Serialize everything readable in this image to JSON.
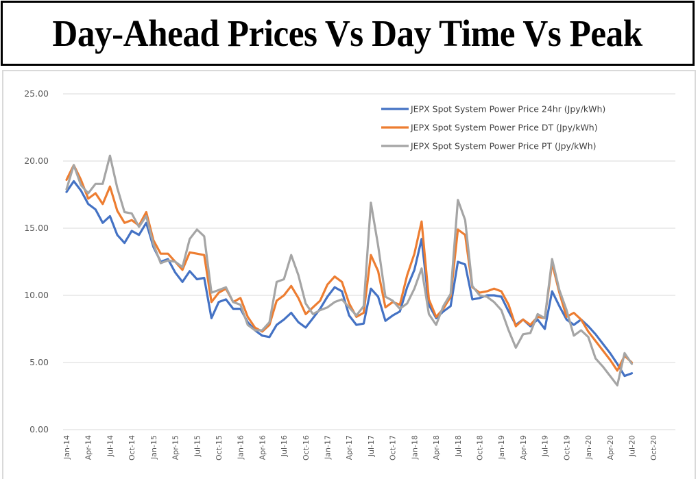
{
  "chart_data": {
    "type": "line",
    "title": "Day-Ahead Prices Vs Day Time Vs Peak",
    "xlabel": "",
    "ylabel": "",
    "ylim": [
      0,
      25
    ],
    "yticks": [
      "0.00",
      "5.00",
      "10.00",
      "15.00",
      "20.00",
      "25.00"
    ],
    "ytick_values": [
      0,
      5,
      10,
      15,
      20,
      25
    ],
    "grid": true,
    "legend_position": "top-right",
    "x_start": "Jan-14",
    "x_tick_labels": [
      "Jan-14",
      "Apr-14",
      "Jul-14",
      "Oct-14",
      "Jan-15",
      "Apr-15",
      "Jul-15",
      "Oct-15",
      "Jan-16",
      "Apr-16",
      "Jul-16",
      "Oct-16",
      "Jan-17",
      "Apr-17",
      "Jul-17",
      "Oct-17",
      "Jan-18",
      "Apr-18",
      "Jul-18",
      "Oct-18",
      "Jan-19",
      "Apr-19",
      "Jul-19",
      "Oct-19",
      "Jan-20",
      "Apr-20",
      "Jul-20",
      "Oct-20"
    ],
    "x_axis_months": 82,
    "series": [
      {
        "name": "JEPX Spot System Power Price 24hr (Jpy/kWh)",
        "color": "#4472C4",
        "values": [
          17.7,
          18.5,
          17.8,
          16.8,
          16.4,
          15.4,
          15.9,
          14.5,
          13.9,
          14.8,
          14.5,
          15.4,
          13.6,
          12.5,
          12.7,
          11.7,
          11.0,
          11.8,
          11.2,
          11.3,
          8.3,
          9.5,
          9.7,
          9.0,
          9.0,
          8.0,
          7.4,
          7.0,
          6.9,
          7.8,
          8.2,
          8.7,
          8.0,
          7.6,
          8.3,
          9.0,
          9.9,
          10.6,
          10.3,
          8.5,
          7.8,
          7.9,
          10.5,
          9.9,
          8.1,
          8.5,
          8.8,
          10.6,
          11.9,
          14.2,
          9.3,
          8.3,
          8.8,
          9.2,
          12.5,
          12.3,
          9.7,
          9.8,
          10.0,
          10.0,
          9.9,
          8.8,
          7.8,
          8.2,
          7.7,
          8.2,
          7.5,
          10.3,
          9.2,
          8.2,
          7.8,
          8.2,
          7.7,
          7.1,
          6.4,
          5.7,
          4.9,
          4.0,
          4.2
        ]
      },
      {
        "name": "JEPX Spot System Power Price DT (Jpy/kWh)",
        "color": "#ED7D31",
        "values": [
          18.6,
          19.7,
          18.6,
          17.2,
          17.6,
          16.8,
          18.1,
          16.3,
          15.4,
          15.6,
          15.2,
          16.2,
          14.1,
          13.1,
          13.1,
          12.5,
          11.9,
          13.2,
          13.1,
          13.0,
          9.5,
          10.2,
          10.5,
          9.5,
          9.8,
          8.4,
          7.6,
          7.3,
          7.8,
          9.6,
          10.0,
          10.7,
          9.8,
          8.6,
          9.1,
          9.6,
          10.8,
          11.4,
          11.0,
          9.4,
          8.4,
          8.7,
          13.0,
          11.8,
          9.1,
          9.5,
          9.3,
          11.5,
          13.1,
          15.5,
          9.7,
          8.4,
          9.0,
          9.9,
          14.9,
          14.5,
          10.6,
          10.2,
          10.3,
          10.5,
          10.3,
          9.3,
          7.7,
          8.2,
          7.8,
          8.4,
          8.3,
          12.4,
          10.2,
          8.4,
          8.7,
          8.2,
          7.3,
          6.6,
          5.9,
          5.2,
          4.4,
          5.5,
          5.0
        ]
      },
      {
        "name": "JEPX Spot System Power Price PT (Jpy/kWh)",
        "color": "#A5A5A5",
        "values": [
          17.9,
          19.7,
          18.2,
          17.6,
          18.3,
          18.3,
          20.4,
          18.0,
          16.2,
          16.1,
          15.1,
          15.9,
          13.8,
          12.4,
          12.6,
          12.5,
          12.1,
          14.2,
          14.9,
          14.4,
          10.2,
          10.4,
          10.6,
          9.5,
          9.3,
          7.8,
          7.4,
          7.4,
          8.0,
          11.0,
          11.2,
          13.0,
          11.5,
          9.4,
          8.6,
          8.9,
          9.1,
          9.5,
          9.7,
          9.1,
          8.5,
          9.2,
          16.9,
          13.7,
          9.9,
          9.6,
          9.0,
          9.4,
          10.5,
          12.0,
          8.6,
          7.8,
          9.2,
          10.1,
          17.1,
          15.6,
          10.7,
          10.0,
          9.9,
          9.5,
          8.9,
          7.4,
          6.1,
          7.1,
          7.2,
          8.6,
          8.3,
          12.7,
          10.4,
          8.9,
          7.0,
          7.4,
          6.9,
          5.3,
          4.7,
          4.0,
          3.3,
          5.7,
          4.9
        ]
      }
    ]
  }
}
